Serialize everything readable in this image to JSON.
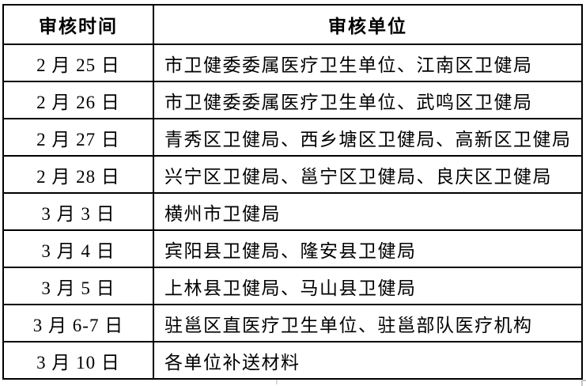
{
  "table": {
    "headers": [
      {
        "label": "审核时间"
      },
      {
        "label": "审核单位"
      }
    ],
    "rows": [
      {
        "time": "2 月 25 日",
        "unit": "市卫健委委属医疗卫生单位、江南区卫健局"
      },
      {
        "time": "2 月 26 日",
        "unit": "市卫健委委属医疗卫生单位、武鸣区卫健局"
      },
      {
        "time": "2 月 27 日",
        "unit": "青秀区卫健局、西乡塘区卫健局、高新区卫健局"
      },
      {
        "time": "2 月 28 日",
        "unit": "兴宁区卫健局、邕宁区卫健局、良庆区卫健局"
      },
      {
        "time": "3 月 3 日",
        "unit": "横州市卫健局"
      },
      {
        "time": "3 月 4 日",
        "unit": "宾阳县卫健局、隆安县卫健局"
      },
      {
        "time": "3 月 5 日",
        "unit": "上林县卫健局、马山县卫健局"
      },
      {
        "time": "3 月 6-7 日",
        "unit": "驻邕区直医疗卫生单位、驻邕部队医疗机构"
      },
      {
        "time": "3 月 10 日",
        "unit": "各单位补送材料"
      }
    ]
  },
  "colors": {
    "border": "#000000",
    "text": "#000000",
    "background": "#ffffff",
    "handle": "#c6c6c6"
  }
}
